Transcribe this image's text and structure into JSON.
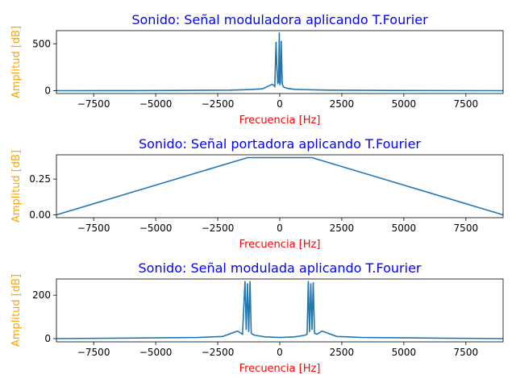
{
  "chart_data": [
    {
      "type": "line",
      "title": "Sonido: Señal moduladora aplicando T.Fourier",
      "xlabel": "Frecuencia [Hz]",
      "ylabel": "Amplitud [dB]",
      "xlim": [
        -9000,
        9000
      ],
      "ylim": [
        -30,
        640
      ],
      "xticks": [
        -7500,
        -5000,
        -2500,
        0,
        2500,
        5000,
        7500
      ],
      "yticks": [
        0,
        500
      ],
      "ytick_labels": [
        "0",
        "500"
      ],
      "grid": false,
      "series": [
        {
          "x": [
            -9000,
            -6000,
            -4200,
            -2000,
            -1200,
            -700,
            -300,
            -200,
            -150,
            -120,
            -80,
            -50,
            -20,
            0,
            30,
            60,
            100,
            150,
            300,
            600,
            1200,
            2000,
            4300,
            9000
          ],
          "y": [
            0,
            1,
            3,
            6,
            12,
            20,
            70,
            45,
            520,
            280,
            80,
            90,
            620,
            60,
            90,
            530,
            70,
            40,
            25,
            15,
            10,
            6,
            3,
            0
          ]
        }
      ]
    },
    {
      "type": "line",
      "title": "Sonido: Señal portadora aplicando T.Fourier",
      "xlabel": "Frecuencia [Hz]",
      "ylabel": "Amplitud [dB]",
      "xlim": [
        -9000,
        9000
      ],
      "ylim": [
        -0.02,
        0.42
      ],
      "xticks": [
        -7500,
        -5000,
        -2500,
        0,
        2500,
        5000,
        7500
      ],
      "yticks": [
        0,
        0.25
      ],
      "ytick_labels": [
        "0.00",
        "0.25"
      ],
      "grid": false,
      "series": [
        {
          "x": [
            -9000,
            -1300,
            1300,
            9000
          ],
          "y": [
            0,
            0.4,
            0.4,
            0
          ]
        }
      ]
    },
    {
      "type": "line",
      "title": "Sonido: Señal modulada aplicando T.Fourier",
      "xlabel": "Frecuencia [Hz]",
      "ylabel": "Amplitud [dB]",
      "xlim": [
        -9000,
        9000
      ],
      "ylim": [
        -15,
        275
      ],
      "xticks": [
        -7500,
        -5000,
        -2500,
        0,
        2500,
        5000,
        7500
      ],
      "yticks": [
        0,
        200
      ],
      "ytick_labels": [
        "0",
        "200"
      ],
      "grid": false,
      "series": [
        {
          "x": [
            -9000,
            -6500,
            -3300,
            -2300,
            -1700,
            -1500,
            -1400,
            -1350,
            -1300,
            -1250,
            -1200,
            -1150,
            -1100,
            -1000,
            -600,
            0,
            600,
            1000,
            1100,
            1150,
            1200,
            1250,
            1300,
            1350,
            1400,
            1500,
            1700,
            2300,
            3300,
            6500,
            9000
          ],
          "y": [
            0,
            2,
            5,
            10,
            35,
            20,
            265,
            40,
            255,
            30,
            265,
            25,
            20,
            15,
            8,
            5,
            8,
            15,
            20,
            265,
            30,
            255,
            40,
            260,
            25,
            20,
            35,
            10,
            5,
            2,
            0
          ]
        }
      ]
    }
  ]
}
